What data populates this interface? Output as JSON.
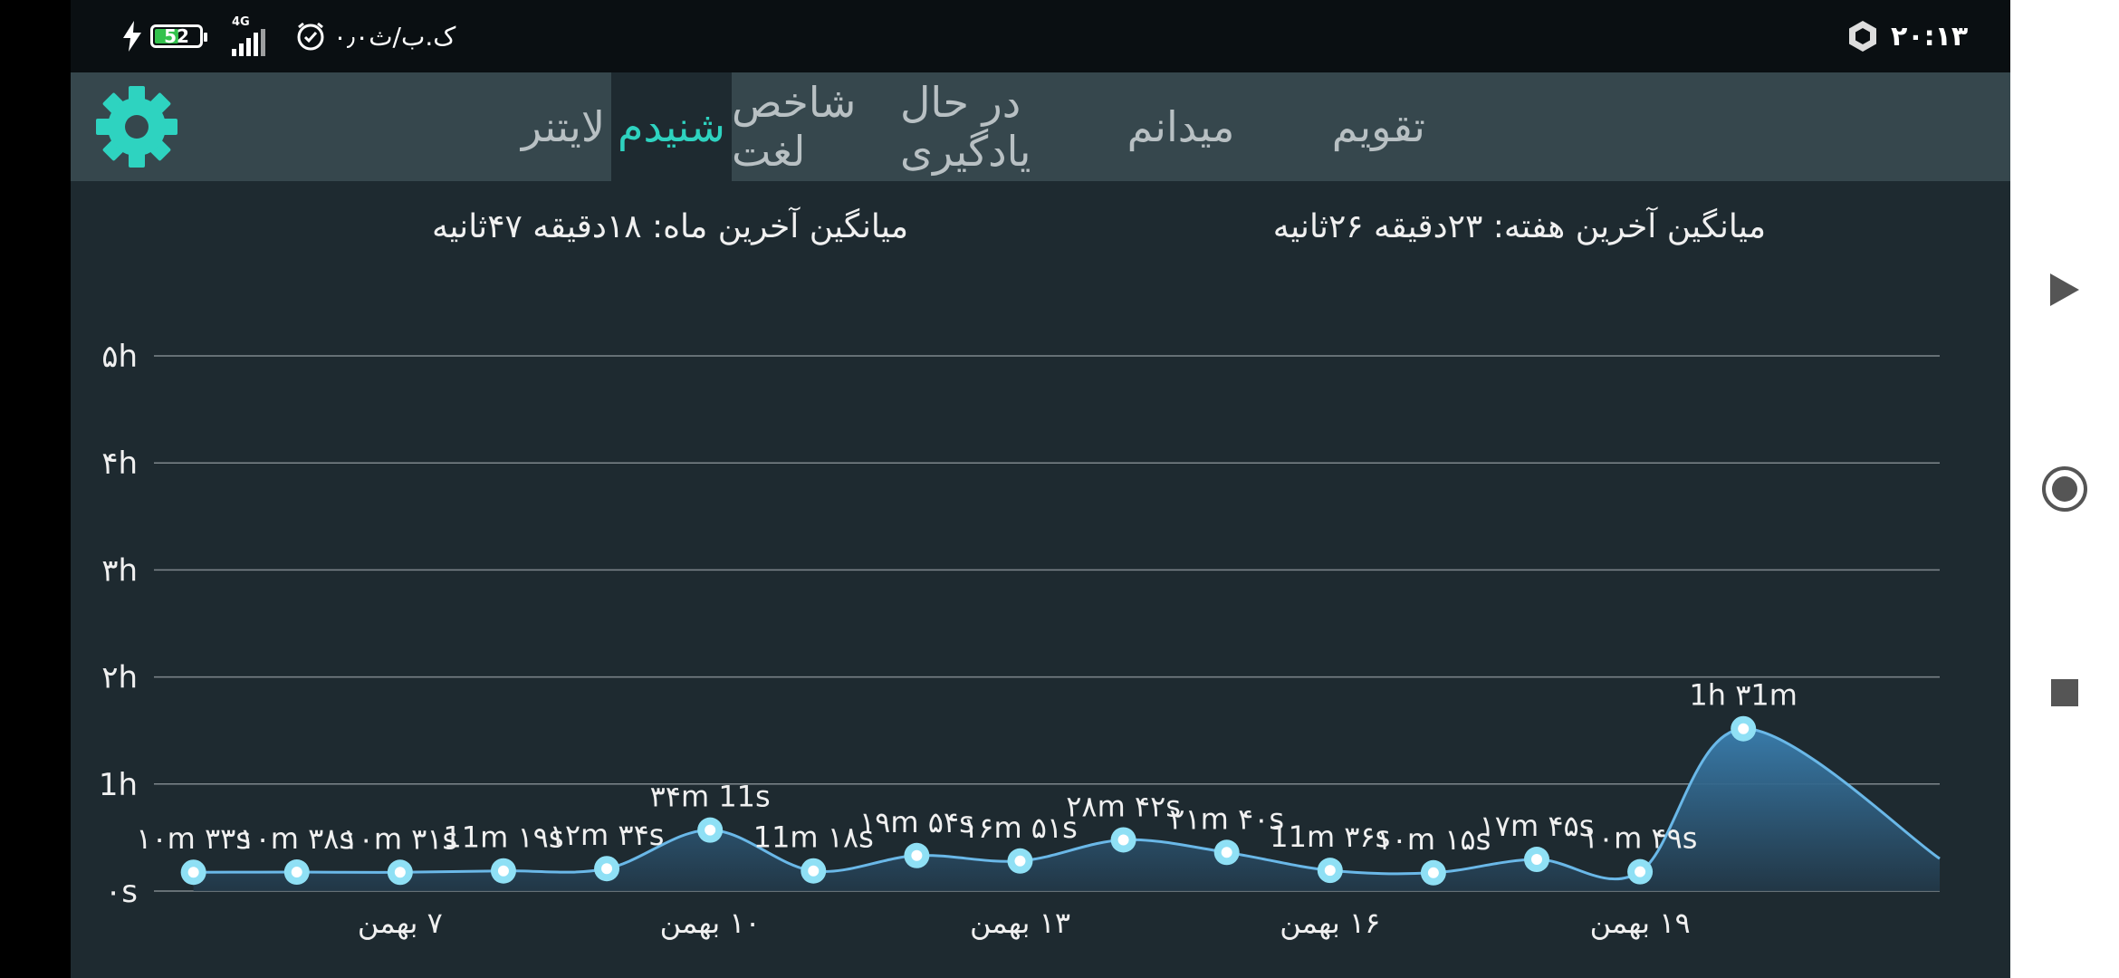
{
  "status_bar": {
    "time": "۲۰:۱۳",
    "speed": "۰٫۰ک.ب/ث",
    "network": "4G",
    "battery": "52"
  },
  "tabs": [
    {
      "label": "تقویم",
      "active": false
    },
    {
      "label": "میدانم",
      "active": false
    },
    {
      "label": "در حال یادگیری",
      "active": false
    },
    {
      "label": "شاخص لغت",
      "active": false
    },
    {
      "label": "شنیدم",
      "active": true
    },
    {
      "label": "لایتنر",
      "active": false
    }
  ],
  "settings_icon": "gear-icon",
  "averages": {
    "week": "میانگین آخرین هفته: ۲۳دقیقه  ۲۶ثانیه",
    "month": "میانگین آخرین ماه: ۱۸دقیقه  ۴۷ثانیه"
  },
  "chart_data": {
    "type": "area",
    "y_unit": "minutes",
    "ylim": [
      0,
      300
    ],
    "y_ticks": [
      {
        "value": 0,
        "label": "۰s"
      },
      {
        "value": 60,
        "label": "1h"
      },
      {
        "value": 120,
        "label": "۲h"
      },
      {
        "value": 180,
        "label": "۳h"
      },
      {
        "value": 240,
        "label": "۴h"
      },
      {
        "value": 300,
        "label": "۵h"
      }
    ],
    "x_ticks": [
      {
        "x": 7,
        "label": "۷ بهمن"
      },
      {
        "x": 10,
        "label": "۱۰ بهمن"
      },
      {
        "x": 13,
        "label": "۱۳ بهمن"
      },
      {
        "x": 16,
        "label": "۱۶ بهمن"
      },
      {
        "x": 19,
        "label": "۱۹ بهمن"
      }
    ],
    "x_range": [
      4.6,
      21.9
    ],
    "points": [
      {
        "x": 5,
        "value": 10.55,
        "label": "۱۰m ۳۳s"
      },
      {
        "x": 6,
        "value": 10.63,
        "label": "۱۰m ۳۸s"
      },
      {
        "x": 7,
        "value": 10.52,
        "label": "۱۰m ۳۱s"
      },
      {
        "x": 8,
        "value": 11.32,
        "label": "11m ۱۹s"
      },
      {
        "x": 9,
        "value": 12.57,
        "label": "۱۲m ۳۴s"
      },
      {
        "x": 10,
        "value": 34.18,
        "label": "۳۴m 11s"
      },
      {
        "x": 11,
        "value": 11.3,
        "label": "11m ۱۸s"
      },
      {
        "x": 12,
        "value": 19.9,
        "label": "۱۹m ۵۴s"
      },
      {
        "x": 13,
        "value": 16.85,
        "label": "۱۶m ۵۱s"
      },
      {
        "x": 14,
        "value": 28.7,
        "label": "۲۸m ۴۲s"
      },
      {
        "x": 15,
        "value": 21.67,
        "label": "۲۱m ۴۰s"
      },
      {
        "x": 16,
        "value": 11.6,
        "label": "11m ۳۶s"
      },
      {
        "x": 17,
        "value": 10.25,
        "label": "۱۰m ۱۵s"
      },
      {
        "x": 18,
        "value": 17.75,
        "label": "۱۷m ۴۵s"
      },
      {
        "x": 19,
        "value": 10.82,
        "label": "۱۰m ۴۹s"
      },
      {
        "x": 20,
        "value": 91,
        "label": "1h ۳1m"
      }
    ],
    "colors": {
      "line": "#6ab8e8",
      "fill_top": "#3a7fb0",
      "fill_bottom": "#223848",
      "grid": "#7e878c",
      "point": "#8fe0f5"
    }
  },
  "nav_bar": {
    "buttons": [
      "back-triangle-icon",
      "home-circle-icon",
      "recents-square-icon"
    ]
  }
}
